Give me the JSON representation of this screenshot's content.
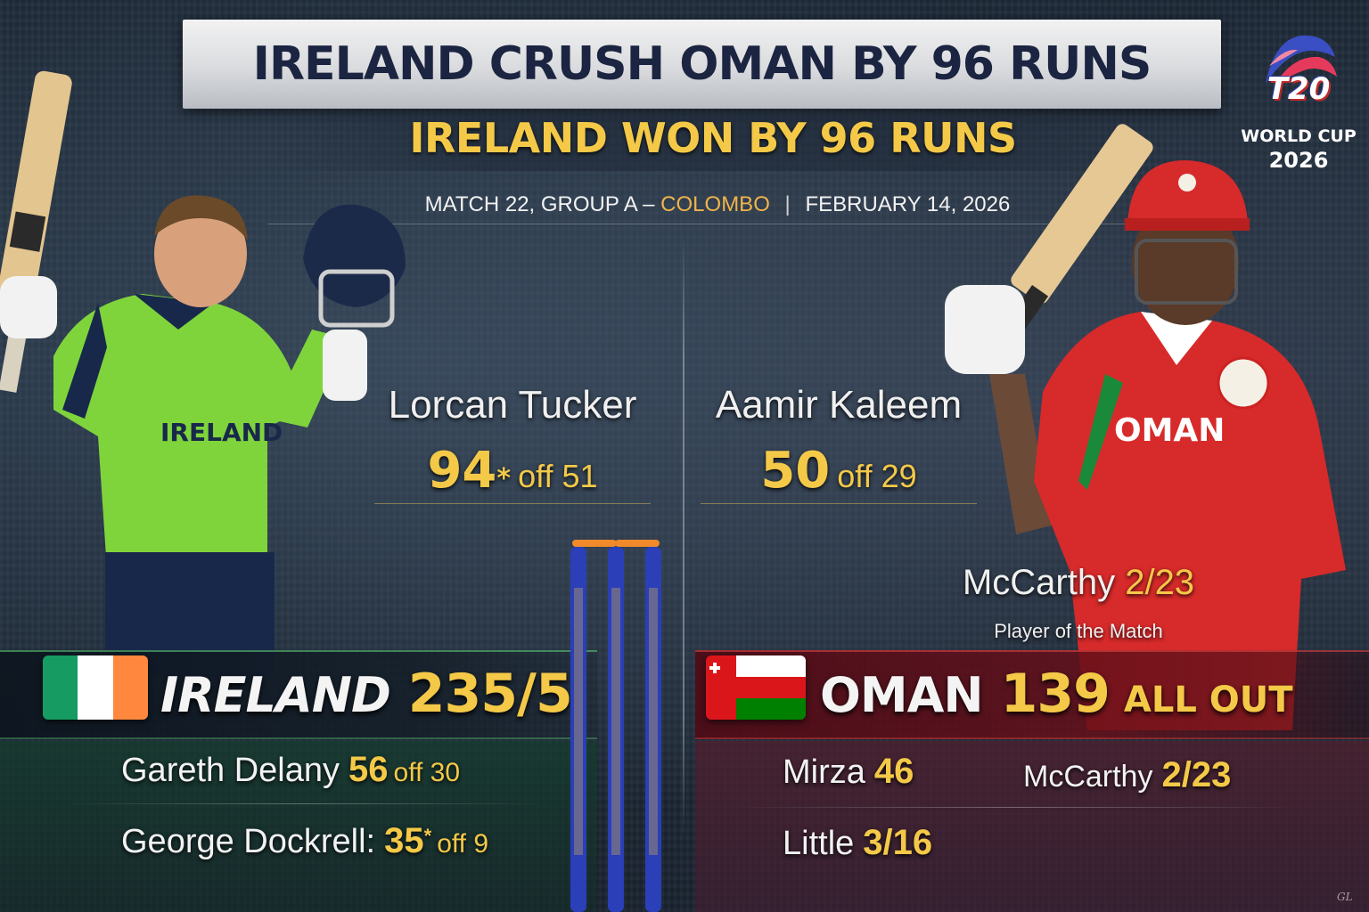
{
  "header": {
    "title": "IRELAND CRUSH OMAN BY 96 RUNS",
    "subtitle": "IRELAND WON BY 96 RUNS",
    "match_info": {
      "match": "MATCH 22, GROUP A –",
      "venue": "COLOMBO",
      "separator": "|",
      "date": "FEBRUARY 14, 2026"
    }
  },
  "logo": {
    "mark": "T20",
    "line1": "WORLD CUP",
    "line2": "2026",
    "icon": "t20-world-cup-logo-icon"
  },
  "ireland": {
    "player_jersey_text": "IRELAND",
    "hero": {
      "name": "Lorcan Tucker",
      "runs": "94",
      "not_out": "*",
      "balls": "off 51"
    },
    "team": {
      "name": "IRELAND",
      "score": "235/5",
      "flag_colors": [
        "#169b62",
        "#ffffff",
        "#ff883e"
      ]
    },
    "performers": [
      {
        "name": "Gareth Delany",
        "figure": "56",
        "star": "",
        "extra": "off 30"
      },
      {
        "name": "George Dockrell:",
        "figure": "35",
        "star": "*",
        "extra": "off 9"
      }
    ]
  },
  "oman": {
    "player_jersey_text": "OMAN",
    "hero": {
      "name": "Aamir Kaleem",
      "runs": "50",
      "balls": "off 29"
    },
    "potm": {
      "name": "McCarthy",
      "figures": "2/23",
      "label": "Player of the Match"
    },
    "team": {
      "name": "OMAN",
      "score": "139",
      "suffix": "ALL OUT",
      "flag_colors": [
        "#db161b",
        "#ffffff",
        "#008000"
      ]
    },
    "performers": [
      {
        "name": "Mirza",
        "figure": "46"
      },
      {
        "name": "McCarthy",
        "figure": "2/23"
      },
      {
        "name": "Little",
        "figure": "3/16"
      }
    ]
  },
  "colors": {
    "gold": "#f4c948",
    "title_text": "#1b2440",
    "venue": "#f0b34a"
  },
  "signature": "GL"
}
